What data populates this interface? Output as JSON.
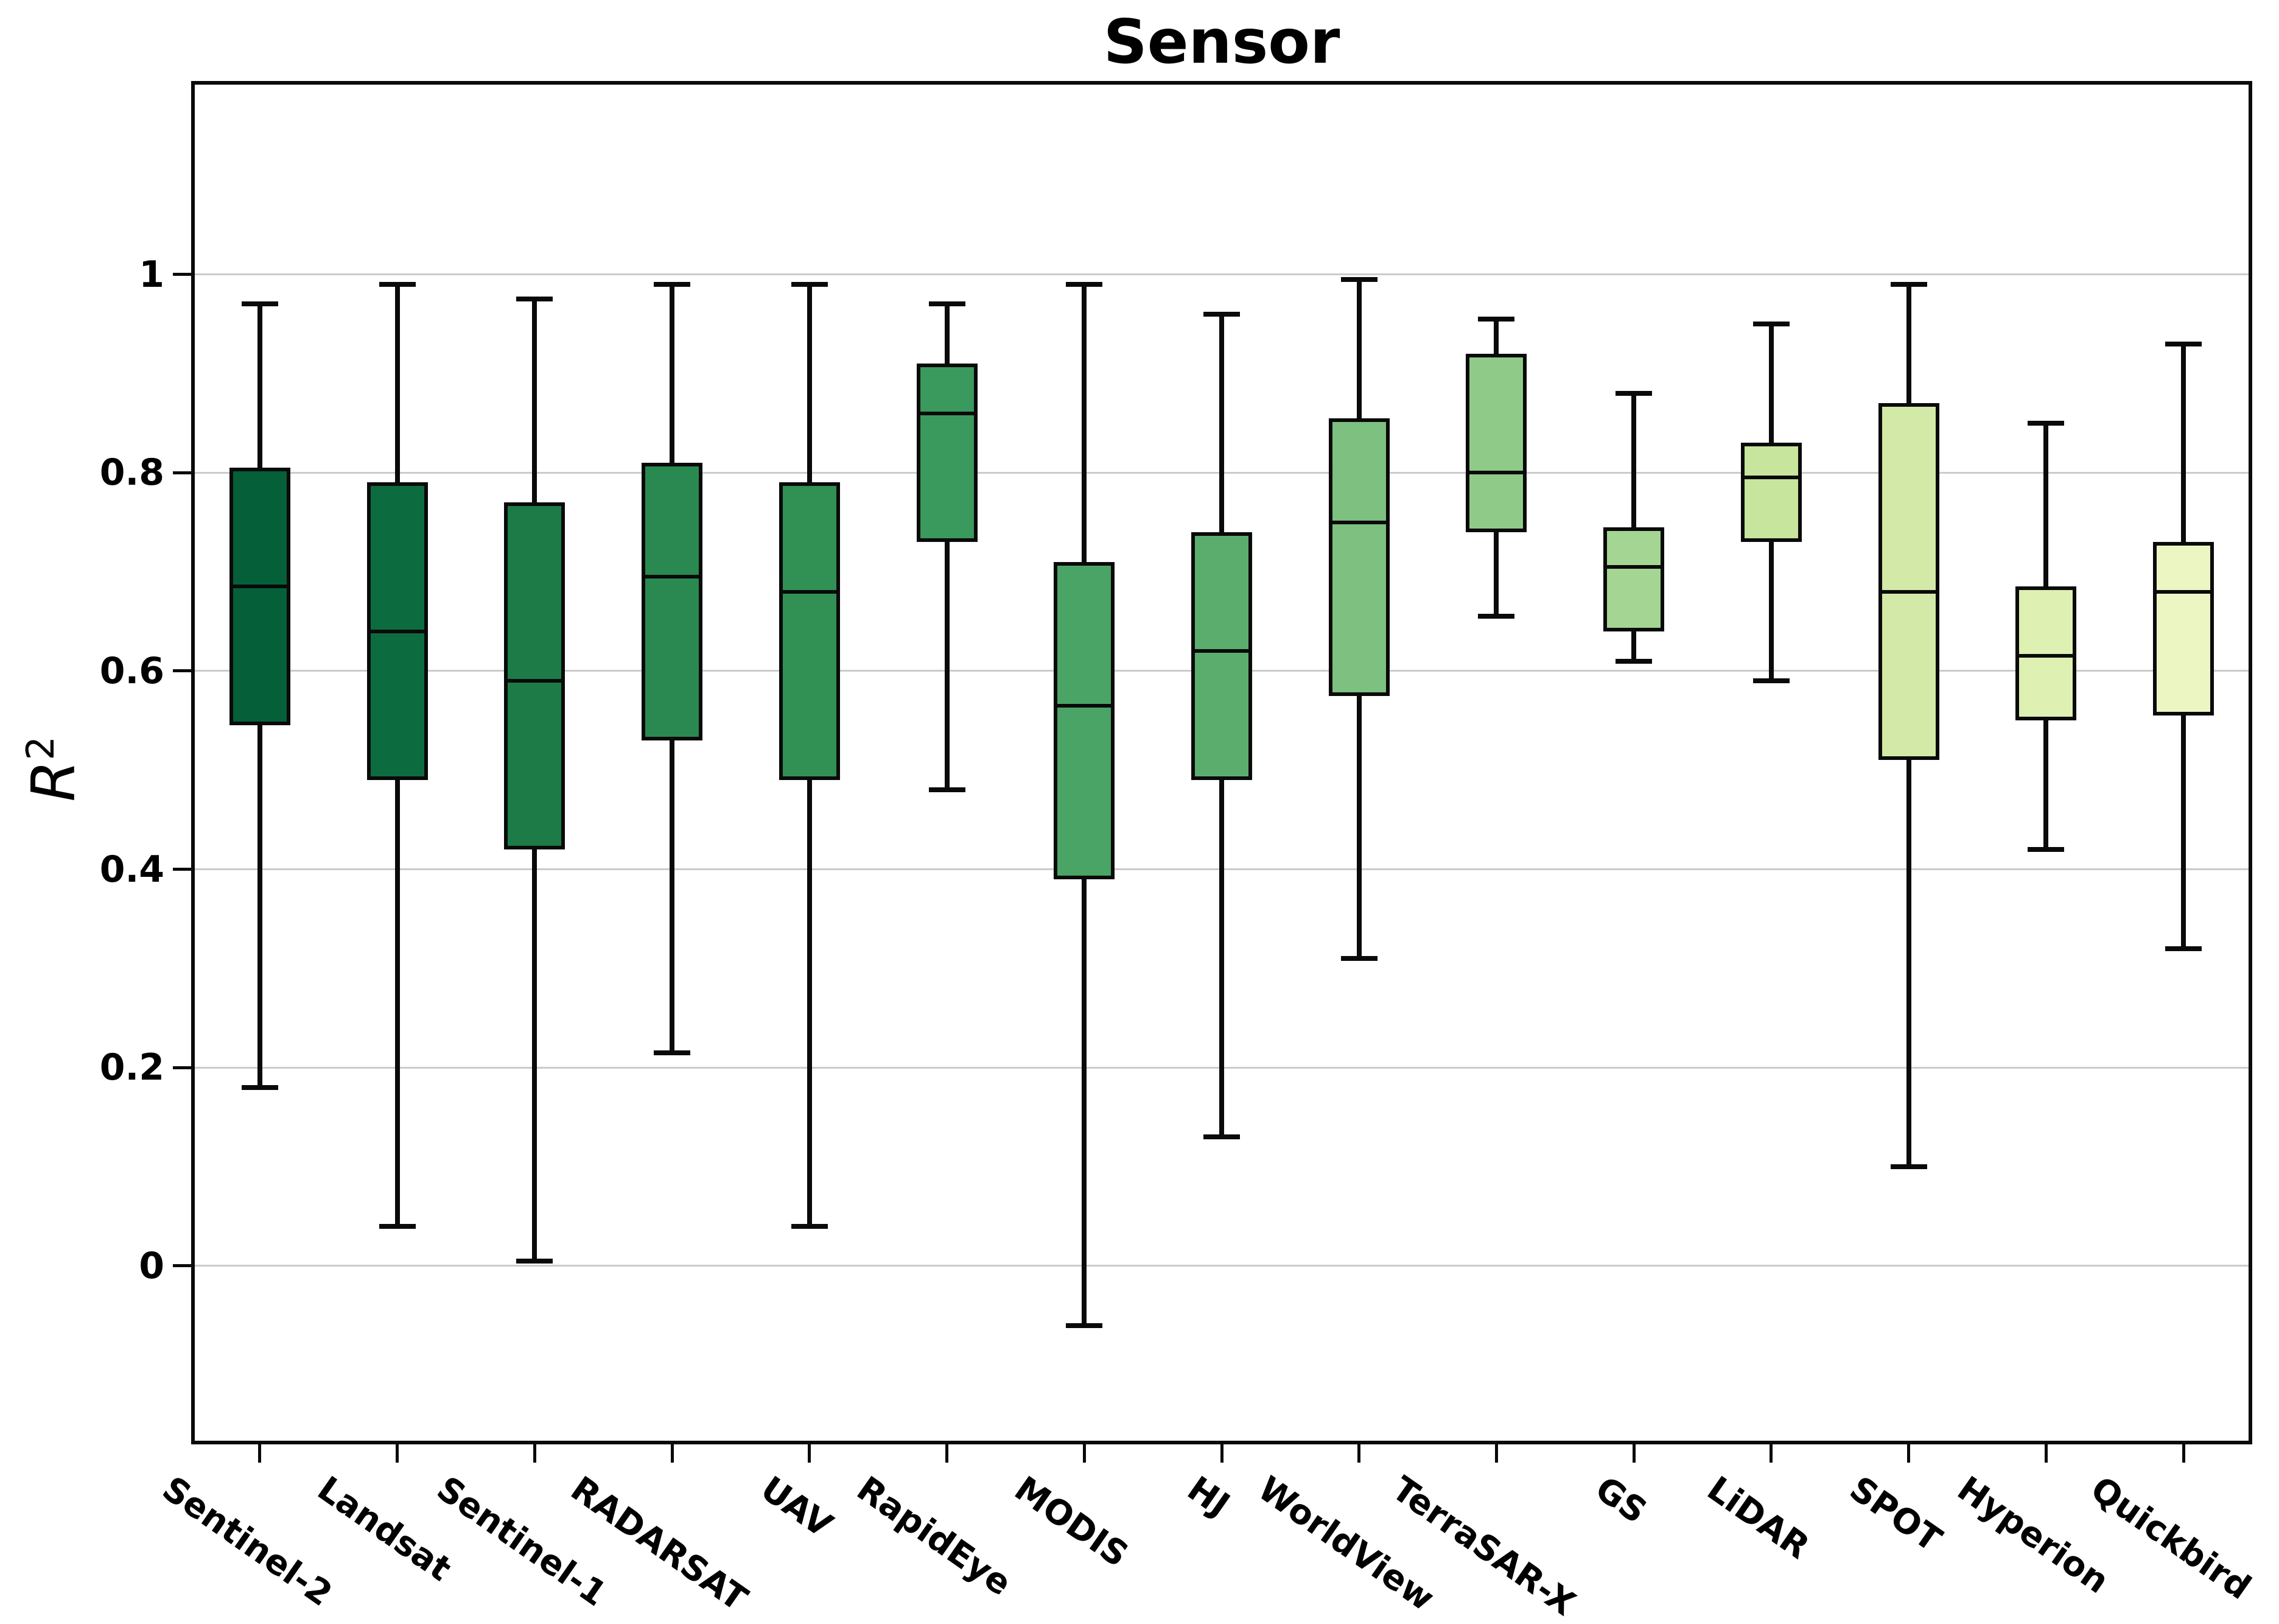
{
  "chart_data": {
    "type": "box",
    "title": "Sensor",
    "ylabel_base": "R",
    "ylabel_exp": "2",
    "xlabel": "",
    "grid": true,
    "grid_color": "#cbcbcb",
    "box_edge_color": "#0a0a0a",
    "ylim": [
      -0.18,
      1.195
    ],
    "legend": "none",
    "yticks": [
      {
        "value": 1,
        "label": "1"
      },
      {
        "value": 0.8,
        "label": "0.8"
      },
      {
        "value": 0.6,
        "label": "0.6"
      },
      {
        "value": 0.4,
        "label": "0.4"
      },
      {
        "value": 0.2,
        "label": "0.2"
      },
      {
        "value": 0,
        "label": "0"
      }
    ],
    "categories": [
      "Sentinel-2",
      "Landsat",
      "Sentinel-1",
      "RADARSAT",
      "UAV",
      "RapidEye",
      "MODIS",
      "HJ",
      "WorldView",
      "TerraSAR-X",
      "GS",
      "LiDAR",
      "SPOT",
      "Hyperion",
      "Quickbird"
    ],
    "series": [
      {
        "name": "Sentinel-2",
        "min": 0.18,
        "q1": 0.545,
        "median": 0.685,
        "q3": 0.805,
        "max": 0.97,
        "color": "#05603a"
      },
      {
        "name": "Landsat",
        "min": 0.04,
        "q1": 0.49,
        "median": 0.64,
        "q3": 0.79,
        "max": 0.99,
        "color": "#0c6c3f"
      },
      {
        "name": "Sentinel-1",
        "min": 0.005,
        "q1": 0.42,
        "median": 0.59,
        "q3": 0.77,
        "max": 0.975,
        "color": "#1c7b47"
      },
      {
        "name": "RADARSAT",
        "min": 0.215,
        "q1": 0.53,
        "median": 0.695,
        "q3": 0.81,
        "max": 0.99,
        "color": "#298950"
      },
      {
        "name": "UAV",
        "min": 0.04,
        "q1": 0.49,
        "median": 0.68,
        "q3": 0.79,
        "max": 0.99,
        "color": "#319054"
      },
      {
        "name": "RapidEye",
        "min": 0.48,
        "q1": 0.73,
        "median": 0.86,
        "q3": 0.91,
        "max": 0.97,
        "color": "#3a995c"
      },
      {
        "name": "MODIS",
        "min": -0.06,
        "q1": 0.39,
        "median": 0.565,
        "q3": 0.71,
        "max": 0.99,
        "color": "#4aa465"
      },
      {
        "name": "HJ",
        "min": 0.13,
        "q1": 0.49,
        "median": 0.62,
        "q3": 0.74,
        "max": 0.96,
        "color": "#5bad6e"
      },
      {
        "name": "WorldView",
        "min": 0.31,
        "q1": 0.575,
        "median": 0.75,
        "q3": 0.855,
        "max": 0.995,
        "color": "#7dc080"
      },
      {
        "name": "TerraSAR-X",
        "min": 0.655,
        "q1": 0.74,
        "median": 0.8,
        "q3": 0.92,
        "max": 0.955,
        "color": "#8fca89"
      },
      {
        "name": "GS",
        "min": 0.61,
        "q1": 0.64,
        "median": 0.705,
        "q3": 0.745,
        "max": 0.88,
        "color": "#a4d592"
      },
      {
        "name": "LiDAR",
        "min": 0.59,
        "q1": 0.73,
        "median": 0.795,
        "q3": 0.83,
        "max": 0.95,
        "color": "#c7e59d"
      },
      {
        "name": "SPOT",
        "min": 0.1,
        "q1": 0.51,
        "median": 0.68,
        "q3": 0.87,
        "max": 0.99,
        "color": "#d2e9a7"
      },
      {
        "name": "Hyperion",
        "min": 0.42,
        "q1": 0.55,
        "median": 0.615,
        "q3": 0.685,
        "max": 0.85,
        "color": "#def0b2"
      },
      {
        "name": "Quickbird",
        "min": 0.32,
        "q1": 0.555,
        "median": 0.68,
        "q3": 0.73,
        "max": 0.93,
        "color": "#ebf6c3"
      }
    ]
  }
}
